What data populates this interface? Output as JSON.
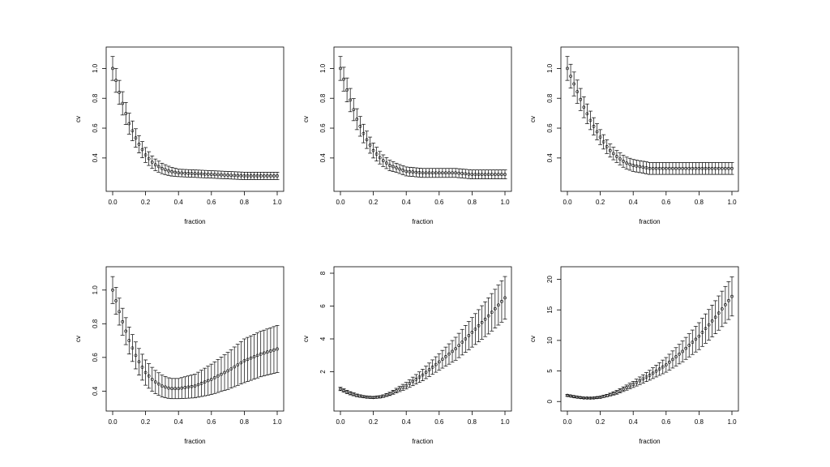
{
  "chart_data": [
    {
      "type": "scatter",
      "xlabel": "fraction",
      "ylabel": "cv",
      "xlim": [
        0,
        1
      ],
      "ylim": [
        0.22,
        1.1
      ],
      "xticks": [
        "0.0",
        "0.2",
        "0.4",
        "0.6",
        "0.8",
        "1.0"
      ],
      "yticks": [
        "0.4",
        "0.6",
        "0.8",
        "1.0"
      ],
      "points": {
        "x": [
          0,
          0.05,
          0.1,
          0.15,
          0.2,
          0.25,
          0.3,
          0.35,
          0.4,
          0.5,
          0.6,
          0.7,
          0.8,
          0.9,
          1.0
        ],
        "y": [
          1.0,
          0.8,
          0.63,
          0.51,
          0.42,
          0.36,
          0.33,
          0.31,
          0.3,
          0.295,
          0.29,
          0.285,
          0.28,
          0.28,
          0.28
        ],
        "err": [
          0.08,
          0.08,
          0.07,
          0.06,
          0.05,
          0.04,
          0.035,
          0.03,
          0.025,
          0.025,
          0.025,
          0.025,
          0.025,
          0.025,
          0.025
        ]
      }
    },
    {
      "type": "scatter",
      "xlabel": "fraction",
      "ylabel": "cv",
      "xlim": [
        0,
        1
      ],
      "ylim": [
        0.22,
        1.1
      ],
      "xticks": [
        "0.0",
        "0.2",
        "0.4",
        "0.6",
        "0.8",
        "1.0"
      ],
      "yticks": [
        "0.4",
        "0.6",
        "0.8",
        "1.0"
      ],
      "points": {
        "x": [
          0,
          0.05,
          0.1,
          0.15,
          0.2,
          0.25,
          0.3,
          0.35,
          0.4,
          0.5,
          0.6,
          0.7,
          0.8,
          0.9,
          1.0
        ],
        "y": [
          1.0,
          0.82,
          0.66,
          0.54,
          0.45,
          0.39,
          0.35,
          0.33,
          0.31,
          0.3,
          0.3,
          0.3,
          0.29,
          0.29,
          0.29
        ],
        "err": [
          0.08,
          0.08,
          0.07,
          0.06,
          0.05,
          0.04,
          0.035,
          0.03,
          0.03,
          0.03,
          0.03,
          0.03,
          0.03,
          0.03,
          0.03
        ]
      }
    },
    {
      "type": "scatter",
      "xlabel": "fraction",
      "ylabel": "cv",
      "xlim": [
        0,
        1
      ],
      "ylim": [
        0.22,
        1.1
      ],
      "xticks": [
        "0.0",
        "0.2",
        "0.4",
        "0.6",
        "0.8",
        "1.0"
      ],
      "yticks": [
        "0.4",
        "0.6",
        "0.8",
        "1.0"
      ],
      "points": {
        "x": [
          0,
          0.05,
          0.1,
          0.15,
          0.2,
          0.25,
          0.3,
          0.35,
          0.4,
          0.5,
          0.6,
          0.7,
          0.8,
          0.9,
          1.0
        ],
        "y": [
          1.0,
          0.87,
          0.74,
          0.63,
          0.54,
          0.46,
          0.41,
          0.37,
          0.35,
          0.33,
          0.33,
          0.33,
          0.33,
          0.33,
          0.33
        ],
        "err": [
          0.08,
          0.08,
          0.07,
          0.06,
          0.05,
          0.045,
          0.04,
          0.04,
          0.04,
          0.04,
          0.04,
          0.04,
          0.04,
          0.04,
          0.04
        ]
      }
    },
    {
      "type": "scatter",
      "xlabel": "fraction",
      "ylabel": "cv",
      "xlim": [
        0,
        1
      ],
      "ylim": [
        0.32,
        1.1
      ],
      "xticks": [
        "0.0",
        "0.2",
        "0.4",
        "0.6",
        "0.8",
        "1.0"
      ],
      "yticks": [
        "0.4",
        "0.6",
        "0.8",
        "1.0"
      ],
      "points": {
        "x": [
          0,
          0.05,
          0.1,
          0.15,
          0.2,
          0.25,
          0.3,
          0.35,
          0.4,
          0.5,
          0.6,
          0.7,
          0.8,
          0.9,
          1.0
        ],
        "y": [
          1.0,
          0.84,
          0.7,
          0.59,
          0.51,
          0.46,
          0.43,
          0.415,
          0.415,
          0.43,
          0.47,
          0.52,
          0.58,
          0.62,
          0.65
        ],
        "err": [
          0.08,
          0.08,
          0.08,
          0.08,
          0.075,
          0.07,
          0.065,
          0.06,
          0.06,
          0.07,
          0.09,
          0.11,
          0.13,
          0.135,
          0.14
        ]
      }
    },
    {
      "type": "scatter",
      "xlabel": "fraction",
      "ylabel": "cv",
      "xlim": [
        0,
        1
      ],
      "ylim": [
        0,
        8
      ],
      "xticks": [
        "0.0",
        "0.2",
        "0.4",
        "0.6",
        "0.8",
        "1.0"
      ],
      "yticks": [
        "2",
        "4",
        "6",
        "8"
      ],
      "points": {
        "x": [
          0,
          0.05,
          0.1,
          0.15,
          0.2,
          0.25,
          0.3,
          0.4,
          0.5,
          0.6,
          0.7,
          0.8,
          0.9,
          1.0
        ],
        "y": [
          0.95,
          0.72,
          0.56,
          0.46,
          0.43,
          0.48,
          0.65,
          1.15,
          1.8,
          2.6,
          3.4,
          4.4,
          5.4,
          6.5
        ],
        "err": [
          0.1,
          0.1,
          0.08,
          0.06,
          0.06,
          0.07,
          0.1,
          0.2,
          0.35,
          0.5,
          0.7,
          0.9,
          1.1,
          1.3
        ]
      }
    },
    {
      "type": "scatter",
      "xlabel": "fraction",
      "ylabel": "cv",
      "xlim": [
        0,
        1
      ],
      "ylim": [
        -0.5,
        21
      ],
      "xticks": [
        "0.0",
        "0.2",
        "0.4",
        "0.6",
        "0.8",
        "1.0"
      ],
      "yticks": [
        "0",
        "5",
        "10",
        "15",
        "20"
      ],
      "points": {
        "x": [
          0,
          0.05,
          0.1,
          0.15,
          0.2,
          0.25,
          0.3,
          0.4,
          0.5,
          0.6,
          0.7,
          0.8,
          0.9,
          1.0
        ],
        "y": [
          1.0,
          0.75,
          0.58,
          0.55,
          0.7,
          1.05,
          1.5,
          2.8,
          4.3,
          6.0,
          8.2,
          10.7,
          13.8,
          17.2
        ],
        "err": [
          0.15,
          0.15,
          0.12,
          0.12,
          0.15,
          0.2,
          0.3,
          0.5,
          0.8,
          1.2,
          1.7,
          2.2,
          2.7,
          3.2
        ]
      }
    }
  ]
}
